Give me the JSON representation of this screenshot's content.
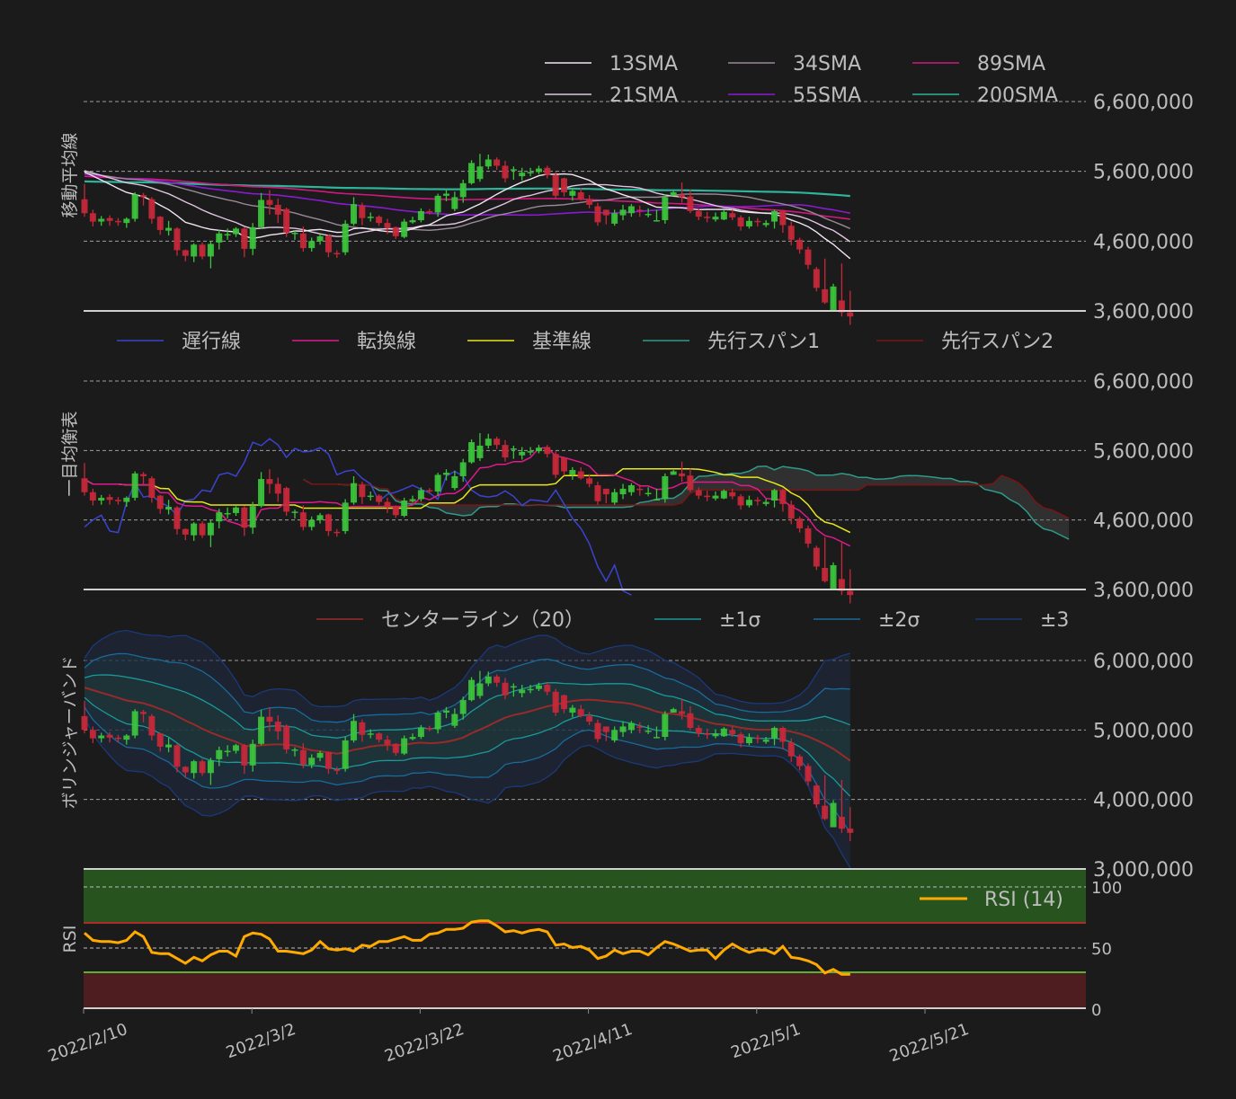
{
  "chart_data": [
    {
      "type": "line",
      "title": "移動平均線",
      "ylabel": "移動平均線",
      "ylim": [
        3600000,
        6600000
      ],
      "yticks": [
        "6,600,000",
        "5,600,000",
        "4,600,000",
        "3,600,000"
      ],
      "legend": [
        "13SMA",
        "34SMA",
        "89SMA",
        "21SMA",
        "55SMA",
        "200SMA"
      ],
      "legend_position": "upper right",
      "grid": true,
      "series_colors": {
        "13SMA": "#f2e6f2",
        "21SMA": "#e0c4e0",
        "34SMA": "#9a8a9a",
        "55SMA": "#8a1ad0",
        "89SMA": "#d0197e",
        "200SMA": "#2fb39a"
      }
    },
    {
      "type": "line",
      "title": "一目均衡表",
      "ylabel": "一目均衡表",
      "ylim": [
        3600000,
        6600000
      ],
      "yticks": [
        "6,600,000",
        "5,600,000",
        "4,600,000",
        "3,600,000"
      ],
      "legend": [
        "遅行線",
        "転換線",
        "基準線",
        "先行スパン1",
        "先行スパン2"
      ],
      "legend_position": "top",
      "grid": true,
      "series_colors": {
        "遅行線": "#3a44d0",
        "転換線": "#e0198e",
        "基準線": "#e8e81a",
        "先行スパン1": "#2f9a8a",
        "先行スパン2": "#7a1414"
      }
    },
    {
      "type": "line",
      "title": "ボリンジャーバンド",
      "ylabel": "ボリンジャーバンド",
      "ylim": [
        3000000,
        6600000
      ],
      "yticks": [
        "6,000,000",
        "5,000,000",
        "4,000,000",
        "3,000,000"
      ],
      "legend": [
        "センターライン（20）",
        "±1σ",
        "±2σ",
        "±3"
      ],
      "legend_position": "top",
      "grid": true,
      "series_colors": {
        "center": "#9a2a2a",
        "1s": "#1a9a9a",
        "2s": "#1a6a9a",
        "3s": "#1a3a7a"
      }
    },
    {
      "type": "line",
      "title": "RSI",
      "ylabel": "RSI",
      "ylim": [
        0,
        110
      ],
      "yticks": [
        "100",
        "50",
        "0"
      ],
      "legend": [
        "RSI (14)"
      ],
      "legend_position": "upper right",
      "overbought": 70,
      "oversold": 30,
      "series_colors": {
        "RSI (14)": "#ffaa00"
      },
      "values": [
        62,
        56,
        55,
        55,
        54,
        56,
        63,
        59,
        46,
        45,
        45,
        41,
        37,
        42,
        39,
        44,
        47,
        47,
        43,
        59,
        62,
        61,
        57,
        47,
        47,
        46,
        45,
        48,
        55,
        49,
        48,
        49,
        47,
        52,
        51,
        55,
        55,
        57,
        59,
        56,
        56,
        61,
        62,
        65,
        65,
        66,
        71,
        72,
        72,
        68,
        63,
        64,
        62,
        64,
        65,
        63,
        52,
        53,
        50,
        51,
        48,
        41,
        43,
        48,
        45,
        47,
        47,
        44,
        50,
        55,
        53,
        50,
        47,
        48,
        48,
        41,
        48,
        53,
        49,
        46,
        48,
        48,
        45,
        51,
        42,
        41,
        39,
        36,
        29,
        32,
        28,
        28
      ]
    }
  ],
  "x_axis": {
    "ticks": [
      "2022/2/10",
      "2022/3/2",
      "2022/3/22",
      "2022/4/11",
      "2022/5/1",
      "2022/5/21"
    ]
  },
  "ohlc": {
    "note": "daily candles estimated from pixel positions (first panel scale)",
    "open": [
      5200000,
      5000000,
      4880000,
      4930000,
      4890000,
      4860000,
      4920000,
      5260000,
      5200000,
      4950000,
      4750000,
      4780000,
      4470000,
      4380000,
      4550000,
      4380000,
      4580000,
      4700000,
      4700000,
      4780000,
      4490000,
      4800000,
      5190000,
      5120000,
      5060000,
      4720000,
      4710000,
      4500000,
      4600000,
      4680000,
      4430000,
      4440000,
      4850000,
      5110000,
      4940000,
      4950000,
      4860000,
      4800000,
      4660000,
      4870000,
      4900000,
      5030000,
      5010000,
      5250000,
      5060000,
      5230000,
      5430000,
      5490000,
      5670000,
      5770000,
      5680000,
      5630000,
      5530000,
      5590000,
      5590000,
      5650000,
      5550000,
      5500000,
      5250000,
      5300000,
      5200000,
      5100000,
      5050000,
      4850000,
      4970000,
      5000000,
      5050000,
      4990000,
      4900000,
      4900000,
      5250000,
      5270000,
      5240000,
      5030000,
      4950000,
      4910000,
      4910000,
      5000000,
      4940000,
      4810000,
      4890000,
      4830000,
      4880000,
      5030000,
      4820000,
      4620000,
      4480000,
      4200000,
      3910000,
      3600000,
      3750000,
      3580000
    ],
    "close": [
      5000000,
      4880000,
      4920000,
      4890000,
      4870000,
      4920000,
      5270000,
      5230000,
      4920000,
      4760000,
      4790000,
      4470000,
      4390000,
      4550000,
      4380000,
      4560000,
      4710000,
      4700000,
      4780000,
      4490000,
      4800000,
      5190000,
      5120000,
      4980000,
      4720000,
      4720000,
      4500000,
      4600000,
      4670000,
      4440000,
      4420000,
      4850000,
      5130000,
      4930000,
      4950000,
      4860000,
      4790000,
      4670000,
      4880000,
      4900000,
      5030000,
      5010000,
      5250000,
      5280000,
      5230000,
      5430000,
      5720000,
      5670000,
      5770000,
      5680000,
      5500000,
      5630000,
      5580000,
      5590000,
      5640000,
      5550000,
      5250000,
      5300000,
      5320000,
      5200000,
      5120000,
      4870000,
      4970000,
      5000000,
      5050000,
      5100000,
      5040000,
      4990000,
      4900000,
      5230000,
      5300000,
      5230000,
      5030000,
      4950000,
      4930000,
      4950000,
      5020000,
      4940000,
      4810000,
      4890000,
      4880000,
      4860000,
      5030000,
      4830000,
      4620000,
      4480000,
      4260000,
      3930000,
      3720000,
      3950000,
      3580000,
      3520000
    ],
    "high": [
      5420000,
      5050000,
      4960000,
      4970000,
      4930000,
      4940000,
      5300000,
      5290000,
      5230000,
      4960000,
      4890000,
      4800000,
      4480000,
      4570000,
      4580000,
      4600000,
      4760000,
      4780000,
      4800000,
      4800000,
      4860000,
      5290000,
      5330000,
      5210000,
      5080000,
      4750000,
      4810000,
      4650000,
      4700000,
      4690000,
      4470000,
      4900000,
      5230000,
      5150000,
      5010000,
      4970000,
      4920000,
      4810000,
      4920000,
      4950000,
      5070000,
      5060000,
      5280000,
      5330000,
      5310000,
      5480000,
      5760000,
      5850000,
      5840000,
      5800000,
      5750000,
      5670000,
      5650000,
      5650000,
      5680000,
      5680000,
      5590000,
      5510000,
      5360000,
      5360000,
      5260000,
      5150000,
      5050000,
      5050000,
      5120000,
      5130000,
      5110000,
      5070000,
      5050000,
      5270000,
      5320000,
      5440000,
      5340000,
      5070000,
      5020000,
      5010000,
      5040000,
      5050000,
      4970000,
      4950000,
      4930000,
      4900000,
      5050000,
      5050000,
      4880000,
      4650000,
      4520000,
      4230000,
      4350000,
      3990000,
      4280000,
      3890000
    ],
    "low": [
      4950000,
      4810000,
      4820000,
      4820000,
      4820000,
      4790000,
      4880000,
      5110000,
      4850000,
      4690000,
      4680000,
      4390000,
      4310000,
      4300000,
      4340000,
      4210000,
      4480000,
      4620000,
      4660000,
      4370000,
      4400000,
      4780000,
      4980000,
      4860000,
      4660000,
      4620000,
      4450000,
      4450000,
      4550000,
      4370000,
      4360000,
      4400000,
      4820000,
      4830000,
      4880000,
      4820000,
      4700000,
      4630000,
      4640000,
      4850000,
      4870000,
      4980000,
      4950000,
      5170000,
      5030000,
      5150000,
      5410000,
      5450000,
      5630000,
      5620000,
      5440000,
      5480000,
      5470000,
      5530000,
      5560000,
      5500000,
      5200000,
      5240000,
      5180000,
      5180000,
      5070000,
      4820000,
      4840000,
      4820000,
      4900000,
      4950000,
      4950000,
      4940000,
      4880000,
      4850000,
      5250000,
      5150000,
      5000000,
      4900000,
      4870000,
      4880000,
      4900000,
      4900000,
      4750000,
      4780000,
      4810000,
      4800000,
      4780000,
      4720000,
      4540000,
      4420000,
      4200000,
      3880000,
      3700000,
      3640000,
      3520000,
      3400000
    ]
  },
  "panel1": {
    "legend": [
      {
        "label": "13SMA",
        "color": "#f2e6f2"
      },
      {
        "label": "34SMA",
        "color": "#9a8a9a"
      },
      {
        "label": "89SMA",
        "color": "#d0197e"
      },
      {
        "label": "21SMA",
        "color": "#e0c4e0"
      },
      {
        "label": "55SMA",
        "color": "#8a1ad0"
      },
      {
        "label": "200SMA",
        "color": "#2fb39a"
      }
    ],
    "ylabel": "移動平均線",
    "yticks": [
      "6,600,000",
      "5,600,000",
      "4,600,000",
      "3,600,000"
    ]
  },
  "panel2": {
    "legend": [
      {
        "label": "遅行線",
        "color": "#3a44d0"
      },
      {
        "label": "転換線",
        "color": "#e0198e"
      },
      {
        "label": "基準線",
        "color": "#e8e81a"
      },
      {
        "label": "先行スパン1",
        "color": "#2f9a8a"
      },
      {
        "label": "先行スパン2",
        "color": "#7a1414"
      }
    ],
    "ylabel": "一目均衡表",
    "yticks": [
      "6,600,000",
      "5,600,000",
      "4,600,000",
      "3,600,000"
    ]
  },
  "panel3": {
    "legend": [
      {
        "label": "センターライン（20）",
        "color": "#a02a2a"
      },
      {
        "label": "±1σ",
        "color": "#1a9a9a"
      },
      {
        "label": "±2σ",
        "color": "#1a6a9a"
      },
      {
        "label": "±3",
        "color": "#1a3a7a"
      }
    ],
    "ylabel": "ボリンジャーバンド",
    "yticks": [
      "6,000,000",
      "5,000,000",
      "4,000,000",
      "3,000,000"
    ]
  },
  "panel4": {
    "legend": [
      {
        "label": "RSI (14)",
        "color": "#ffaa00"
      }
    ],
    "ylabel": "RSI",
    "yticks": [
      "100",
      "50",
      "0"
    ]
  },
  "colors": {
    "background": "#1b1b1b",
    "up": "#3cc43c",
    "down": "#c8283a",
    "grid": "#bfbfbf",
    "axis": "#d0d0d0",
    "rsi_overbought_fill": "#27531f",
    "rsi_oversold_fill": "#4e1d20",
    "rsi_ob_line": "#b02a2a",
    "rsi_os_line": "#5ab032"
  }
}
